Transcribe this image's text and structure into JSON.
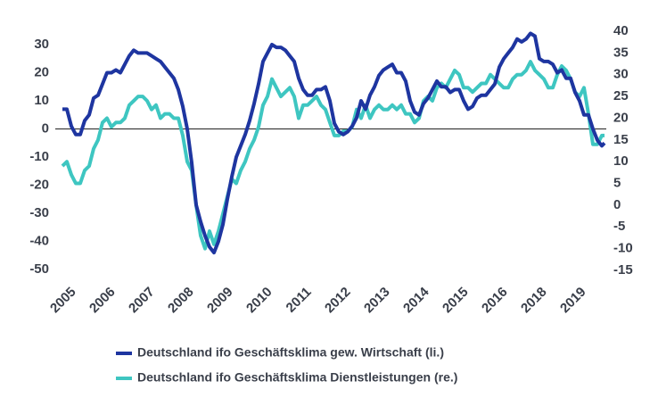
{
  "chart_data": {
    "type": "line",
    "x": [
      0,
      1,
      2,
      3,
      4,
      5,
      6,
      7,
      8,
      9,
      10,
      11,
      12,
      13,
      14,
      15,
      16,
      17,
      18,
      19,
      20,
      21,
      22,
      23,
      24,
      25,
      26,
      27,
      28,
      29,
      30,
      31,
      32,
      33,
      34,
      35,
      36,
      37,
      38,
      39,
      40,
      41,
      42,
      43,
      44,
      45,
      46,
      47,
      48,
      49,
      50,
      51,
      52,
      53,
      54,
      55,
      56,
      57,
      58,
      59,
      60,
      61,
      62,
      63,
      64,
      65,
      66,
      67,
      68,
      69,
      70,
      71,
      72,
      73,
      74,
      75,
      76,
      77,
      78,
      79,
      80,
      81,
      82,
      83,
      84,
      85,
      86,
      87,
      88,
      89,
      90,
      91,
      92,
      93,
      94,
      95,
      96,
      97,
      98,
      99,
      100,
      101,
      102,
      103,
      104,
      105,
      106,
      107,
      108,
      109,
      110,
      111,
      112,
      113,
      114,
      115,
      116,
      117,
      118,
      119,
      120,
      121,
      121.6
    ],
    "xlim": [
      0,
      122
    ],
    "xticks": [
      {
        "value": 1,
        "label": "2005"
      },
      {
        "value": 9.8,
        "label": "2006"
      },
      {
        "value": 18.6,
        "label": "2007"
      },
      {
        "value": 27.4,
        "label": "2008"
      },
      {
        "value": 36.2,
        "label": "2009"
      },
      {
        "value": 45,
        "label": "2010"
      },
      {
        "value": 53.8,
        "label": "2011"
      },
      {
        "value": 62.6,
        "label": "2012"
      },
      {
        "value": 71.4,
        "label": "2013"
      },
      {
        "value": 80.2,
        "label": "2014"
      },
      {
        "value": 89,
        "label": "2015"
      },
      {
        "value": 97.8,
        "label": "2016"
      },
      {
        "value": 106.6,
        "label": "2018"
      },
      {
        "value": 115.4,
        "label": "2019"
      }
    ],
    "ylim": [
      -50,
      30
    ],
    "yticks": [
      -50,
      -40,
      -30,
      -20,
      -10,
      0,
      10,
      20,
      30
    ],
    "y2lim": [
      -15,
      40
    ],
    "y2ticks": [
      -15,
      -10,
      -5,
      0,
      5,
      10,
      15,
      20,
      25,
      30,
      35,
      40
    ],
    "series": [
      {
        "name": "Deutschland ifo Geschäftsklima gew. Wirtschaft (li.)",
        "color": "#1e35a0",
        "values": [
          7,
          7,
          1,
          -2,
          -2,
          3,
          5,
          11,
          12,
          16,
          20,
          20,
          21,
          20,
          23,
          26,
          28,
          27,
          27,
          27,
          26,
          25,
          24,
          22,
          20,
          18,
          14,
          8,
          0,
          -12,
          -27,
          -33,
          -38,
          -42,
          -44,
          -40,
          -34,
          -25,
          -17,
          -10,
          -6,
          -2,
          3,
          9,
          16,
          24,
          27,
          30,
          29,
          29,
          28,
          26,
          24,
          18,
          14,
          12,
          12,
          14,
          14,
          15,
          10,
          2,
          -1,
          -2,
          -1,
          1,
          4,
          10,
          7,
          12,
          15,
          19,
          21,
          22,
          23,
          20,
          20,
          17,
          10,
          6,
          5,
          9,
          11,
          14,
          17,
          15,
          15,
          13,
          14,
          14,
          10,
          7,
          8,
          11,
          12,
          12,
          14,
          16,
          22,
          25,
          27,
          29,
          32,
          31,
          32,
          34,
          33,
          25,
          24,
          24,
          23,
          20,
          21,
          18,
          18,
          13,
          10,
          5,
          5,
          0,
          -4,
          -6,
          -5
        ]
      },
      {
        "name": "Deutschland ifo Geschäftsklima Dienstleistungen (re.)",
        "color": "#3ec6c1",
        "axis": "y2",
        "values": [
          9,
          10,
          7,
          5,
          5,
          8,
          9,
          13,
          15,
          19,
          20,
          18,
          19,
          19,
          20,
          23,
          24,
          25,
          25,
          24,
          22,
          23,
          20,
          21,
          21,
          20,
          20,
          16,
          10,
          8,
          0,
          -7,
          -10,
          -6,
          -9,
          -6,
          -2,
          2,
          6,
          5,
          8,
          10,
          13,
          15,
          18,
          23,
          25,
          29,
          27,
          25,
          26,
          27,
          25,
          20,
          23,
          23,
          24,
          25,
          23,
          22,
          19,
          16,
          16,
          17,
          17,
          18,
          22,
          20,
          23,
          20,
          22,
          23,
          22,
          22,
          23,
          22,
          23,
          21,
          21,
          19,
          20,
          24,
          25,
          24,
          27,
          28,
          27,
          29,
          31,
          30,
          27,
          27,
          26,
          27,
          28,
          28,
          30,
          29,
          28,
          27,
          27,
          29,
          30,
          30,
          31,
          33,
          31,
          30,
          29,
          27,
          27,
          30,
          32,
          31,
          29,
          26,
          25,
          27,
          21,
          14,
          14,
          16,
          16
        ]
      }
    ]
  }
}
